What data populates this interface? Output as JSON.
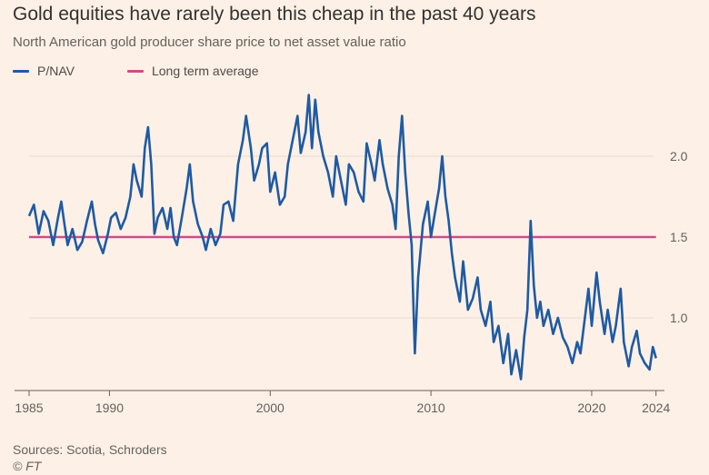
{
  "chart_data": {
    "type": "line",
    "title": "Gold equities have rarely been this cheap in the past 40 years",
    "subtitle": "North American gold producer share price to net asset value ratio",
    "xlabel": "",
    "ylabel": "",
    "xlim": [
      1985,
      2024.3
    ],
    "ylim": [
      0.55,
      2.45
    ],
    "x_ticks": [
      1985,
      1990,
      2000,
      2010,
      2020,
      2024
    ],
    "y_ticks": [
      1.0,
      1.5,
      2.0
    ],
    "y_tick_labels": [
      "1.0",
      "1.5",
      "2.0"
    ],
    "grid": "horizontal",
    "legend_position": "top-left",
    "series": [
      {
        "name": "P/NAV",
        "color": "#1f5aa3",
        "points": [
          [
            1985.0,
            1.63
          ],
          [
            1985.3,
            1.7
          ],
          [
            1985.6,
            1.52
          ],
          [
            1985.9,
            1.66
          ],
          [
            1986.2,
            1.6
          ],
          [
            1986.5,
            1.45
          ],
          [
            1986.8,
            1.62
          ],
          [
            1987.0,
            1.72
          ],
          [
            1987.2,
            1.58
          ],
          [
            1987.4,
            1.45
          ],
          [
            1987.7,
            1.55
          ],
          [
            1988.0,
            1.42
          ],
          [
            1988.3,
            1.47
          ],
          [
            1988.6,
            1.6
          ],
          [
            1988.9,
            1.72
          ],
          [
            1989.1,
            1.58
          ],
          [
            1989.3,
            1.48
          ],
          [
            1989.6,
            1.4
          ],
          [
            1989.9,
            1.52
          ],
          [
            1990.1,
            1.62
          ],
          [
            1990.4,
            1.65
          ],
          [
            1990.7,
            1.55
          ],
          [
            1991.0,
            1.62
          ],
          [
            1991.3,
            1.75
          ],
          [
            1991.5,
            1.95
          ],
          [
            1991.7,
            1.85
          ],
          [
            1992.0,
            1.75
          ],
          [
            1992.2,
            2.05
          ],
          [
            1992.4,
            2.18
          ],
          [
            1992.6,
            1.95
          ],
          [
            1992.8,
            1.52
          ],
          [
            1993.0,
            1.62
          ],
          [
            1993.3,
            1.68
          ],
          [
            1993.6,
            1.55
          ],
          [
            1993.8,
            1.68
          ],
          [
            1994.0,
            1.5
          ],
          [
            1994.2,
            1.45
          ],
          [
            1994.5,
            1.62
          ],
          [
            1994.8,
            1.8
          ],
          [
            1995.0,
            1.95
          ],
          [
            1995.2,
            1.72
          ],
          [
            1995.5,
            1.58
          ],
          [
            1995.8,
            1.5
          ],
          [
            1996.0,
            1.42
          ],
          [
            1996.3,
            1.55
          ],
          [
            1996.6,
            1.45
          ],
          [
            1996.9,
            1.52
          ],
          [
            1997.1,
            1.7
          ],
          [
            1997.4,
            1.72
          ],
          [
            1997.7,
            1.6
          ],
          [
            1998.0,
            1.95
          ],
          [
            1998.3,
            2.1
          ],
          [
            1998.5,
            2.25
          ],
          [
            1998.8,
            2.05
          ],
          [
            1999.0,
            1.85
          ],
          [
            1999.3,
            1.95
          ],
          [
            1999.5,
            2.05
          ],
          [
            1999.8,
            2.08
          ],
          [
            2000.0,
            1.78
          ],
          [
            2000.3,
            1.9
          ],
          [
            2000.6,
            1.7
          ],
          [
            2000.9,
            1.75
          ],
          [
            2001.1,
            1.95
          ],
          [
            2001.4,
            2.1
          ],
          [
            2001.7,
            2.25
          ],
          [
            2001.9,
            2.02
          ],
          [
            2002.2,
            2.15
          ],
          [
            2002.4,
            2.38
          ],
          [
            2002.6,
            2.05
          ],
          [
            2002.8,
            2.35
          ],
          [
            2003.0,
            2.15
          ],
          [
            2003.3,
            2.0
          ],
          [
            2003.6,
            1.9
          ],
          [
            2003.9,
            1.75
          ],
          [
            2004.1,
            2.0
          ],
          [
            2004.4,
            1.85
          ],
          [
            2004.7,
            1.7
          ],
          [
            2004.9,
            1.95
          ],
          [
            2005.2,
            1.9
          ],
          [
            2005.5,
            1.78
          ],
          [
            2005.8,
            1.72
          ],
          [
            2006.0,
            2.08
          ],
          [
            2006.3,
            1.95
          ],
          [
            2006.5,
            1.85
          ],
          [
            2006.8,
            2.1
          ],
          [
            2007.0,
            1.95
          ],
          [
            2007.3,
            1.8
          ],
          [
            2007.6,
            1.7
          ],
          [
            2007.8,
            1.55
          ],
          [
            2008.0,
            2.0
          ],
          [
            2008.2,
            2.25
          ],
          [
            2008.4,
            1.9
          ],
          [
            2008.6,
            1.65
          ],
          [
            2008.8,
            1.45
          ],
          [
            2008.9,
            1.1
          ],
          [
            2009.0,
            0.78
          ],
          [
            2009.2,
            1.25
          ],
          [
            2009.5,
            1.58
          ],
          [
            2009.8,
            1.72
          ],
          [
            2010.0,
            1.5
          ],
          [
            2010.2,
            1.62
          ],
          [
            2010.5,
            1.8
          ],
          [
            2010.7,
            2.0
          ],
          [
            2010.9,
            1.75
          ],
          [
            2011.1,
            1.6
          ],
          [
            2011.3,
            1.4
          ],
          [
            2011.5,
            1.25
          ],
          [
            2011.8,
            1.1
          ],
          [
            2012.0,
            1.35
          ],
          [
            2012.3,
            1.05
          ],
          [
            2012.6,
            1.12
          ],
          [
            2012.9,
            1.25
          ],
          [
            2013.1,
            1.05
          ],
          [
            2013.4,
            0.95
          ],
          [
            2013.7,
            1.1
          ],
          [
            2013.9,
            0.85
          ],
          [
            2014.2,
            0.95
          ],
          [
            2014.5,
            0.72
          ],
          [
            2014.8,
            0.9
          ],
          [
            2015.0,
            0.65
          ],
          [
            2015.3,
            0.8
          ],
          [
            2015.6,
            0.62
          ],
          [
            2015.8,
            0.88
          ],
          [
            2016.0,
            1.05
          ],
          [
            2016.2,
            1.6
          ],
          [
            2016.4,
            1.2
          ],
          [
            2016.6,
            1.0
          ],
          [
            2016.8,
            1.1
          ],
          [
            2017.0,
            0.95
          ],
          [
            2017.3,
            1.05
          ],
          [
            2017.6,
            0.9
          ],
          [
            2017.9,
            1.0
          ],
          [
            2018.2,
            0.88
          ],
          [
            2018.5,
            0.82
          ],
          [
            2018.8,
            0.72
          ],
          [
            2019.1,
            0.85
          ],
          [
            2019.3,
            0.78
          ],
          [
            2019.6,
            1.02
          ],
          [
            2019.8,
            1.18
          ],
          [
            2020.0,
            0.95
          ],
          [
            2020.3,
            1.28
          ],
          [
            2020.5,
            1.1
          ],
          [
            2020.8,
            0.9
          ],
          [
            2021.0,
            1.05
          ],
          [
            2021.3,
            0.85
          ],
          [
            2021.5,
            0.95
          ],
          [
            2021.8,
            1.18
          ],
          [
            2022.0,
            0.85
          ],
          [
            2022.3,
            0.7
          ],
          [
            2022.5,
            0.82
          ],
          [
            2022.8,
            0.92
          ],
          [
            2023.0,
            0.78
          ],
          [
            2023.3,
            0.72
          ],
          [
            2023.6,
            0.68
          ],
          [
            2023.8,
            0.82
          ],
          [
            2024.0,
            0.75
          ]
        ]
      },
      {
        "name": "Long term average",
        "color": "#cc4e8a",
        "points": [
          [
            1985.0,
            1.5
          ],
          [
            2024.0,
            1.5
          ]
        ]
      }
    ],
    "sources": "Sources: Scotia, Schroders",
    "credit": "© FT"
  }
}
